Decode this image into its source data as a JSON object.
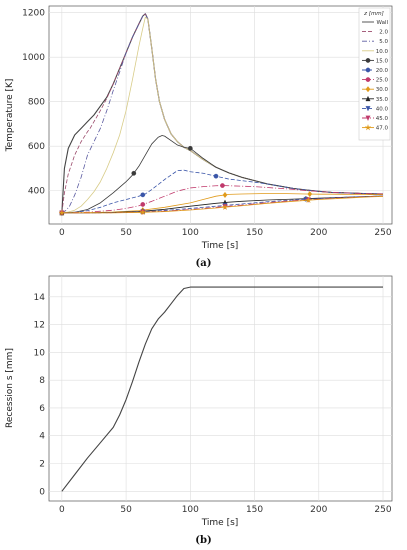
{
  "chart_data": [
    {
      "type": "line",
      "caption": "(a)",
      "xlabel": "Time [s]",
      "ylabel": "Temperature [K]",
      "xlim": [
        -10,
        257
      ],
      "ylim": [
        250,
        1230
      ],
      "xticks": [
        0,
        50,
        100,
        150,
        200,
        250
      ],
      "yticks": [
        400,
        600,
        800,
        1000,
        1200
      ],
      "grid": true,
      "legend": {
        "title": "z [mm]",
        "placement": "top-right",
        "entries": [
          "Wall",
          "2.0",
          "5.0",
          "10.0",
          "15.0",
          "20.0",
          "25.0",
          "30.0",
          "35.0",
          "40.0",
          "45.0",
          "47.0"
        ]
      },
      "series": [
        {
          "name": "Wall",
          "color": "#444444",
          "dash": "",
          "marker": "none",
          "x": [
            0,
            2,
            5,
            10,
            15,
            20,
            25,
            30,
            35,
            40,
            45,
            50,
            55,
            60,
            63,
            65,
            67,
            70,
            73,
            76,
            80,
            85,
            90,
            95,
            100,
            110,
            120,
            130,
            140,
            150,
            160,
            170,
            180,
            190,
            200,
            210,
            220,
            230,
            240,
            250
          ],
          "y": [
            300,
            500,
            590,
            650,
            680,
            710,
            740,
            780,
            820,
            880,
            950,
            1020,
            1090,
            1150,
            1185,
            1195,
            1170,
            1040,
            900,
            800,
            720,
            655,
            620,
            595,
            580,
            540,
            505,
            480,
            460,
            445,
            430,
            420,
            410,
            403,
            397,
            392,
            390,
            388,
            386,
            385
          ]
        },
        {
          "name": "2.0",
          "color": "#9b4a6b",
          "dash": "4,2",
          "marker": "none",
          "x": [
            0,
            2,
            5,
            10,
            15,
            20,
            22,
            25,
            30,
            35,
            40,
            45,
            50,
            55,
            60,
            63,
            65,
            67,
            70,
            73,
            76,
            80,
            85,
            90,
            95,
            100,
            110,
            120,
            130,
            140,
            150,
            160,
            170,
            180,
            190,
            200,
            210,
            220,
            230,
            240,
            250
          ],
          "y": [
            300,
            390,
            475,
            560,
            620,
            665,
            680,
            710,
            760,
            815,
            880,
            950,
            1020,
            1090,
            1150,
            1185,
            1195,
            1170,
            1040,
            900,
            800,
            720,
            655,
            620,
            595,
            580,
            540,
            505,
            480,
            460,
            445,
            430,
            420,
            410,
            403,
            397,
            392,
            390,
            388,
            386,
            385
          ]
        },
        {
          "name": "5.0",
          "color": "#5a5aa0",
          "dash": "5,2,1,2",
          "marker": "none",
          "x": [
            0,
            3,
            6,
            10,
            15,
            20,
            25,
            30,
            35,
            40,
            43,
            46,
            50,
            55,
            60,
            63,
            65,
            67,
            70,
            73,
            76,
            80,
            85,
            90,
            95,
            100,
            110,
            120,
            130,
            140,
            150,
            160,
            170,
            180,
            190,
            200,
            210,
            220,
            230,
            240,
            250
          ],
          "y": [
            300,
            310,
            330,
            380,
            460,
            560,
            620,
            680,
            760,
            850,
            900,
            950,
            1020,
            1090,
            1150,
            1185,
            1195,
            1170,
            1040,
            900,
            800,
            720,
            655,
            620,
            595,
            580,
            540,
            505,
            480,
            460,
            445,
            430,
            420,
            410,
            403,
            397,
            392,
            390,
            388,
            386,
            385
          ]
        },
        {
          "name": "10.0",
          "color": "#d8cc88",
          "dash": "",
          "marker": "none",
          "x": [
            0,
            5,
            10,
            15,
            20,
            25,
            30,
            35,
            40,
            45,
            50,
            55,
            58,
            60,
            63,
            65,
            67,
            70,
            73,
            76,
            80,
            85,
            90,
            95,
            100,
            110,
            120,
            130,
            140,
            150,
            160,
            170,
            180,
            190,
            200,
            210,
            220,
            230,
            240,
            250
          ],
          "y": [
            300,
            304,
            312,
            330,
            360,
            395,
            440,
            500,
            570,
            650,
            760,
            900,
            990,
            1050,
            1130,
            1180,
            1170,
            1040,
            900,
            800,
            720,
            655,
            620,
            595,
            580,
            540,
            505,
            480,
            460,
            445,
            430,
            420,
            410,
            403,
            397,
            392,
            390,
            388,
            386,
            385
          ]
        },
        {
          "name": "15.0",
          "color": "#3a3a3a",
          "dash": "",
          "marker": "circle",
          "x": [
            0,
            10,
            20,
            30,
            40,
            50,
            55,
            60,
            65,
            70,
            75,
            78,
            80,
            85,
            90,
            95,
            100,
            110,
            120,
            130,
            140,
            150,
            160,
            170,
            180,
            190,
            200,
            210,
            220,
            230,
            240,
            250
          ],
          "y": [
            300,
            303,
            315,
            345,
            390,
            440,
            470,
            510,
            560,
            610,
            640,
            648,
            645,
            625,
            605,
            595,
            590,
            545,
            505,
            480,
            460,
            445,
            430,
            420,
            410,
            403,
            397,
            392,
            390,
            388,
            386,
            385
          ],
          "markers_at": [
            0,
            56,
            100
          ]
        },
        {
          "name": "20.0",
          "color": "#3a55a8",
          "dash": "4,2",
          "marker": "circle",
          "x": [
            0,
            10,
            20,
            30,
            40,
            50,
            60,
            65,
            70,
            80,
            90,
            95,
            100,
            110,
            120,
            130,
            140,
            150,
            160,
            170,
            180,
            190,
            200,
            210,
            220,
            230,
            240,
            250
          ],
          "y": [
            300,
            302,
            310,
            325,
            345,
            360,
            375,
            385,
            405,
            450,
            490,
            492,
            485,
            478,
            465,
            452,
            445,
            438,
            430,
            420,
            410,
            403,
            397,
            392,
            390,
            388,
            386,
            385
          ],
          "markers_at": [
            0,
            63,
            120
          ]
        },
        {
          "name": "25.0",
          "color": "#c0396b",
          "dash": "6,2,1,2",
          "marker": "circle",
          "x": [
            0,
            20,
            40,
            50,
            60,
            65,
            70,
            80,
            90,
            100,
            110,
            120,
            125,
            130,
            140,
            150,
            160,
            170,
            180,
            190,
            200,
            210,
            220,
            230,
            240,
            250
          ],
          "y": [
            300,
            303,
            312,
            320,
            332,
            342,
            352,
            375,
            398,
            412,
            418,
            422,
            423,
            422,
            420,
            418,
            414,
            410,
            406,
            400,
            396,
            392,
            390,
            388,
            386,
            385
          ],
          "markers_at": [
            0,
            63,
            125
          ]
        },
        {
          "name": "30.0",
          "color": "#e09a1a",
          "dash": "",
          "marker": "diamond",
          "x": [
            0,
            20,
            40,
            60,
            80,
            100,
            110,
            120,
            130,
            140,
            150,
            160,
            170,
            180,
            190,
            200,
            210,
            220,
            230,
            240,
            250
          ],
          "y": [
            300,
            301,
            304,
            310,
            325,
            345,
            360,
            375,
            383,
            385,
            386,
            387,
            387,
            386,
            385,
            384,
            384,
            383,
            383,
            382,
            382
          ],
          "markers_at": [
            0,
            63,
            127,
            193
          ]
        },
        {
          "name": "35.0",
          "color": "#222222",
          "dash": "",
          "marker": "triangle",
          "x": [
            0,
            20,
            40,
            60,
            80,
            100,
            120,
            130,
            140,
            160,
            180,
            200,
            220,
            240,
            250
          ],
          "y": [
            300,
            300,
            302,
            306,
            316,
            330,
            343,
            348,
            352,
            358,
            362,
            366,
            370,
            374,
            376
          ],
          "markers_at": [
            0,
            63,
            127,
            190
          ]
        },
        {
          "name": "40.0",
          "color": "#3a55a8",
          "dash": "4,2",
          "marker": "triangle-down",
          "x": [
            0,
            20,
            40,
            60,
            80,
            100,
            120,
            140,
            160,
            180,
            200,
            220,
            240,
            250
          ],
          "y": [
            300,
            300,
            301,
            304,
            311,
            320,
            330,
            340,
            350,
            358,
            364,
            370,
            374,
            376
          ],
          "markers_at": [
            0,
            63,
            127,
            190
          ]
        },
        {
          "name": "45.0",
          "color": "#c0396b",
          "dash": "6,2,1,2",
          "marker": "triangle-down",
          "x": [
            0,
            20,
            40,
            60,
            80,
            100,
            120,
            140,
            160,
            180,
            200,
            220,
            240,
            250
          ],
          "y": [
            300,
            300,
            301,
            303,
            308,
            315,
            325,
            335,
            346,
            355,
            362,
            368,
            373,
            375
          ],
          "markers_at": [
            0,
            63,
            127,
            192
          ]
        },
        {
          "name": "47.0",
          "color": "#e09a1a",
          "dash": "",
          "marker": "star",
          "x": [
            0,
            20,
            40,
            60,
            80,
            100,
            120,
            140,
            160,
            180,
            200,
            220,
            240,
            250
          ],
          "y": [
            300,
            300,
            300,
            302,
            306,
            313,
            322,
            332,
            343,
            352,
            360,
            366,
            372,
            374
          ],
          "markers_at": [
            0,
            63,
            127,
            192
          ]
        }
      ]
    },
    {
      "type": "line",
      "caption": "(b)",
      "xlabel": "Time [s]",
      "ylabel": "Recession s [mm]",
      "xlim": [
        -10,
        257
      ],
      "ylim": [
        -0.7,
        15.5
      ],
      "xticks": [
        0,
        50,
        100,
        150,
        200,
        250
      ],
      "yticks": [
        0,
        2,
        4,
        6,
        8,
        10,
        12,
        14
      ],
      "grid": true,
      "series": [
        {
          "color": "#444444",
          "x": [
            0,
            10,
            20,
            30,
            40,
            45,
            50,
            55,
            60,
            65,
            70,
            75,
            80,
            85,
            90,
            95,
            100,
            150,
            200,
            250
          ],
          "y": [
            0,
            1.2,
            2.4,
            3.5,
            4.6,
            5.5,
            6.6,
            7.9,
            9.3,
            10.6,
            11.7,
            12.4,
            12.9,
            13.5,
            14.1,
            14.6,
            14.7,
            14.7,
            14.7,
            14.7
          ]
        }
      ]
    }
  ]
}
